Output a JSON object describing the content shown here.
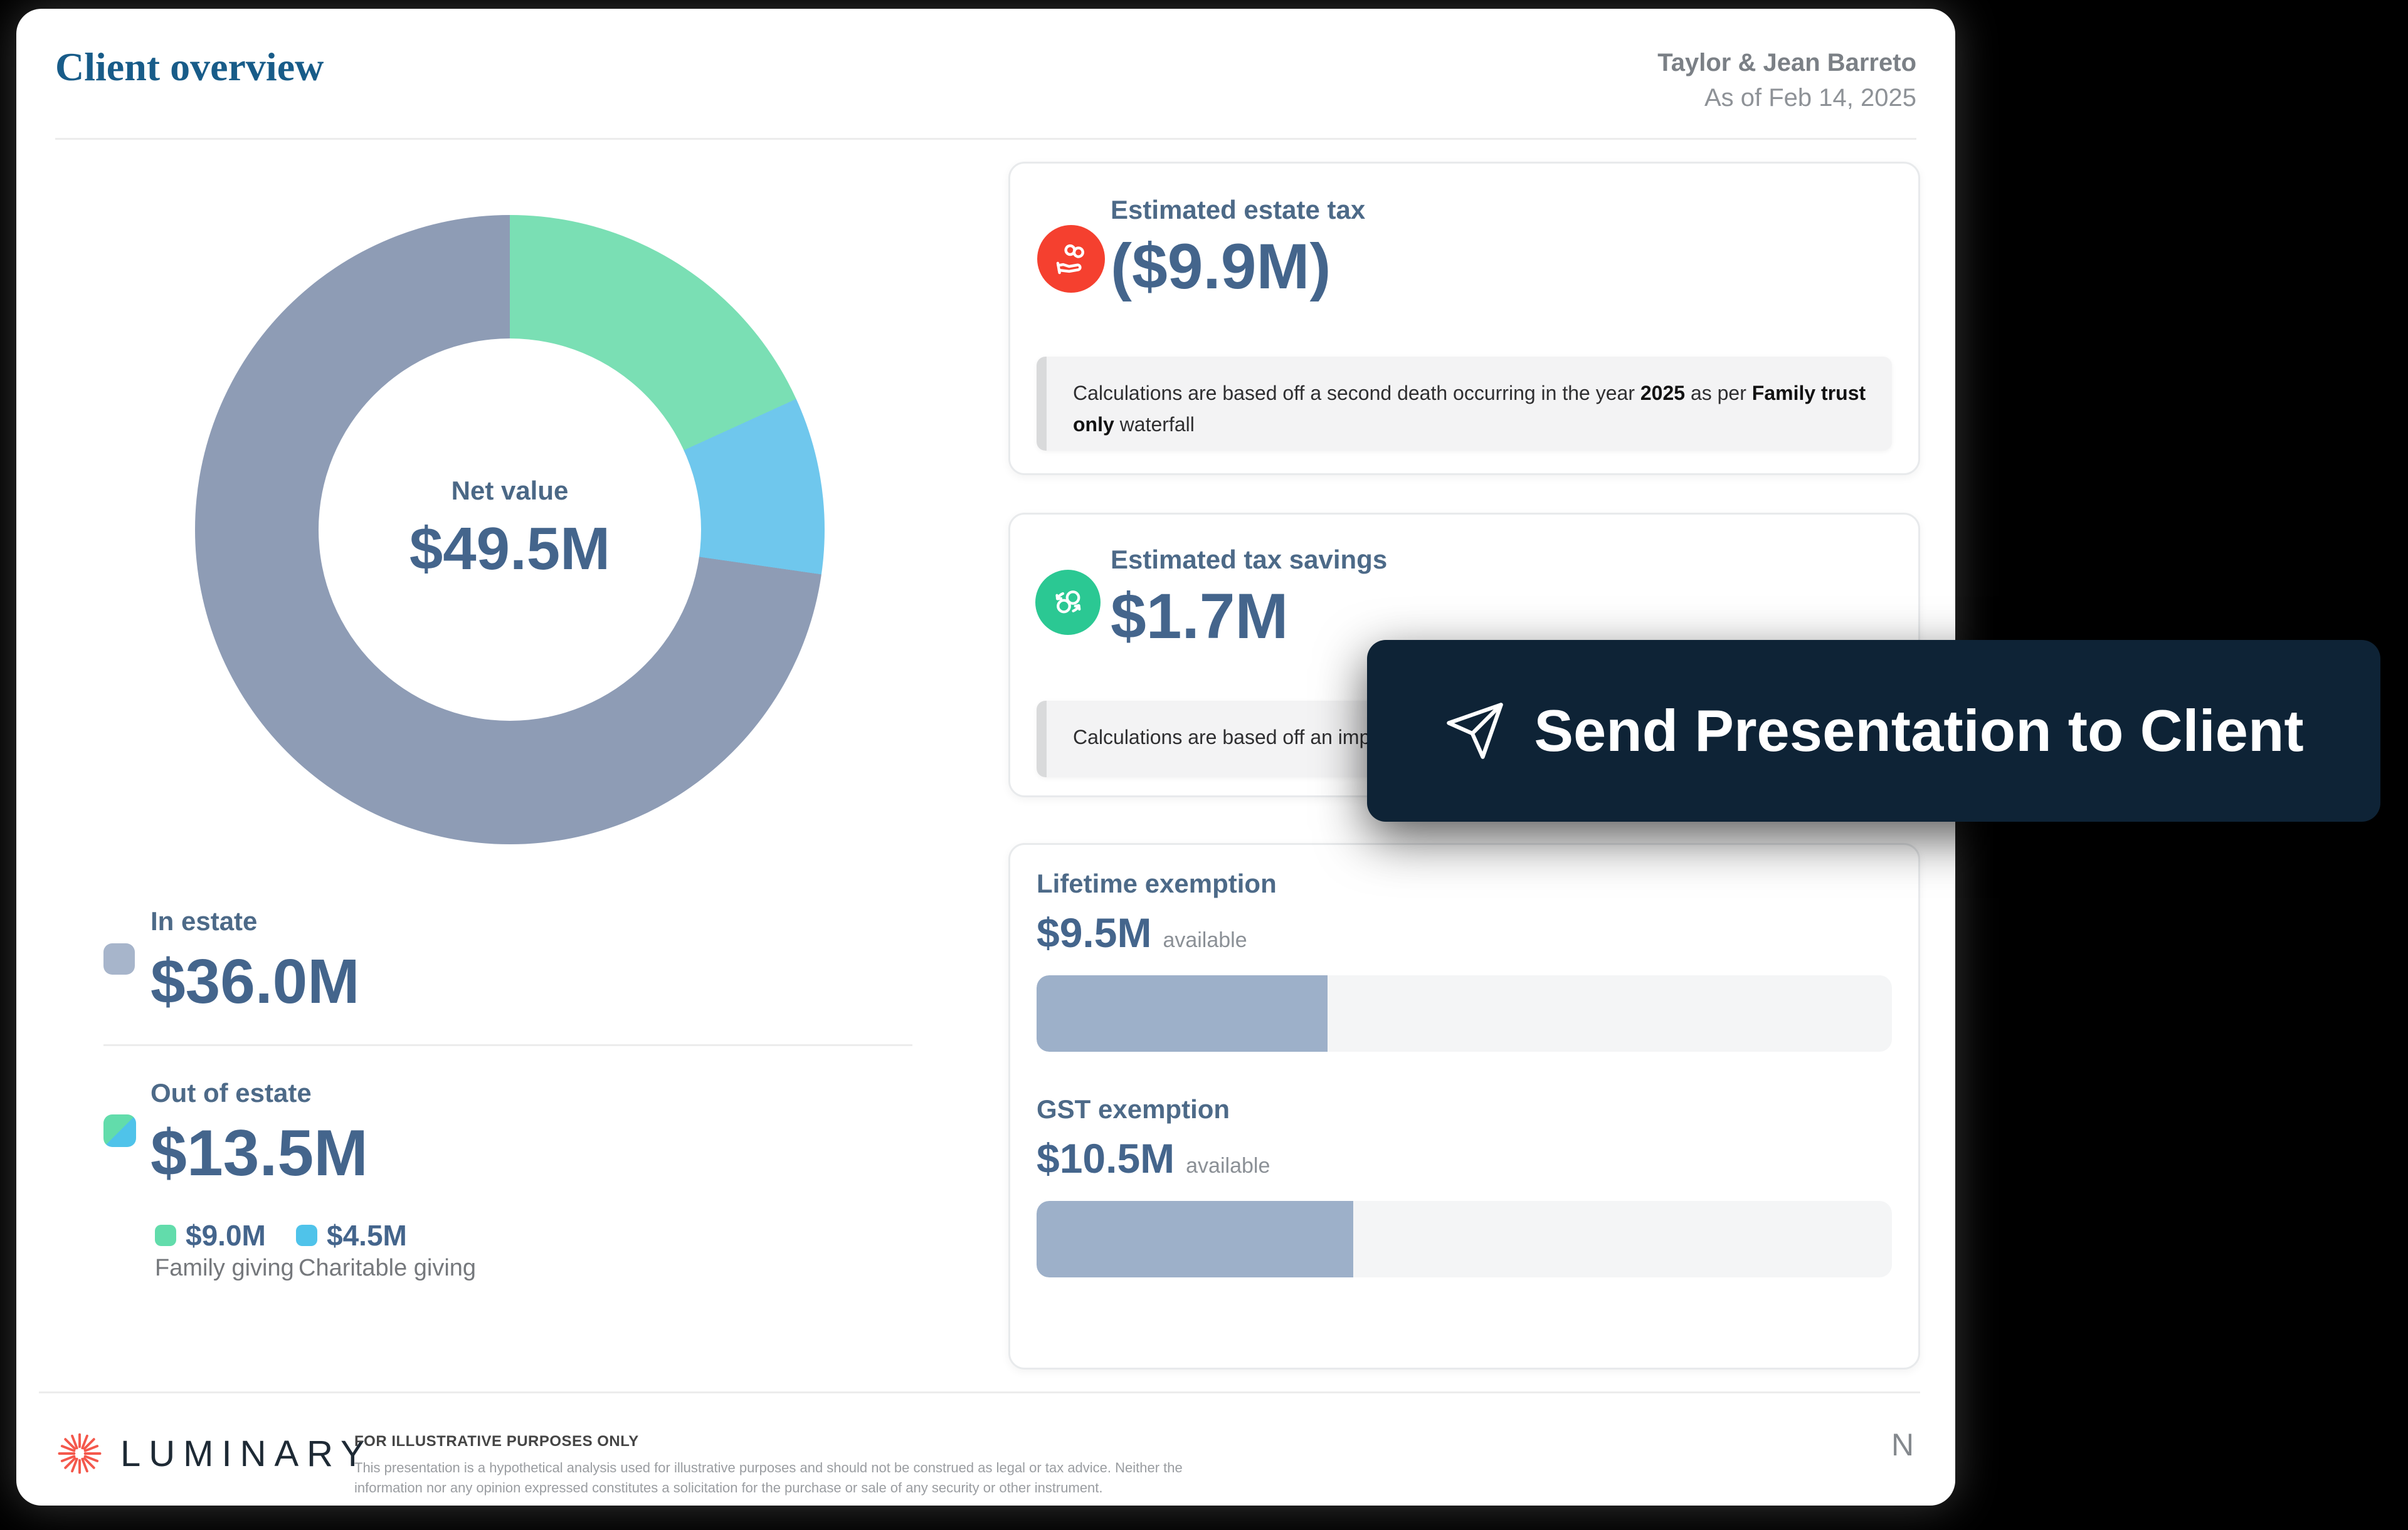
{
  "header": {
    "title": "Client overview",
    "client_name": "Taylor & Jean Barreto",
    "as_of": "As of Feb 14, 2025"
  },
  "chart_data": {
    "type": "pie",
    "title": "Net value",
    "center_label": "Net value",
    "center_value": "$49.5M",
    "total_millions": 49.5,
    "legend_position": "below-left",
    "segments": [
      {
        "label": "Family giving",
        "value": 9.0,
        "display": "$9.0M",
        "color": "#7adfb4"
      },
      {
        "label": "Charitable giving",
        "value": 4.5,
        "display": "$4.5M",
        "color": "#6fc7ed"
      },
      {
        "label": "In estate",
        "value": 36.0,
        "display": "$36.0M",
        "color": "#8e9cb5"
      }
    ]
  },
  "estate_summary": {
    "in_estate": {
      "label": "In estate",
      "value": "$36.0M",
      "swatch_color": "#a7b5cb"
    },
    "out_of_estate": {
      "label": "Out of estate",
      "value": "$13.5M"
    },
    "legend": [
      {
        "value": "$9.0M",
        "label": "Family giving",
        "color": "#62dcab"
      },
      {
        "value": "$4.5M",
        "label": "Charitable giving",
        "color": "#4fc3ea"
      }
    ]
  },
  "cards": {
    "estate_tax": {
      "title": "Estimated estate tax",
      "amount": "($9.9M)",
      "icon": "hand-coins-icon",
      "icon_bg": "#f5402f",
      "note_prefix": "Calculations are based off a second death occurring in the year ",
      "note_bold1": "2025",
      "note_mid": " as per ",
      "note_bold2": "Family trust only",
      "note_suffix": " waterfall"
    },
    "tax_savings": {
      "title": "Estimated tax savings",
      "amount": "$1.7M",
      "icon": "exchange-coins-icon",
      "icon_bg": "#2bc893",
      "note_visible": "Calculations are based off an impl"
    },
    "exemptions": {
      "lifetime": {
        "title": "Lifetime exemption",
        "amount": "$9.5M",
        "suffix": "available",
        "percent": 34
      },
      "gst": {
        "title": "GST exemption",
        "amount": "$10.5M",
        "suffix": "available",
        "percent": 37
      }
    }
  },
  "overlay_button": {
    "label": "Send Presentation to Client",
    "icon": "paper-plane-icon",
    "bg": "#0e2336"
  },
  "footer": {
    "brand": "LUMINARY",
    "disclaimer_title": "FOR ILLUSTRATIVE PURPOSES ONLY",
    "disclaimer_body": "This presentation is a hypothetical analysis used for illustrative purposes and should not be construed as legal or tax advice. Neither the information nor any opinion expressed constitutes a solicitation for the purchase or sale of any security or other instrument.",
    "page_marker": "N"
  }
}
